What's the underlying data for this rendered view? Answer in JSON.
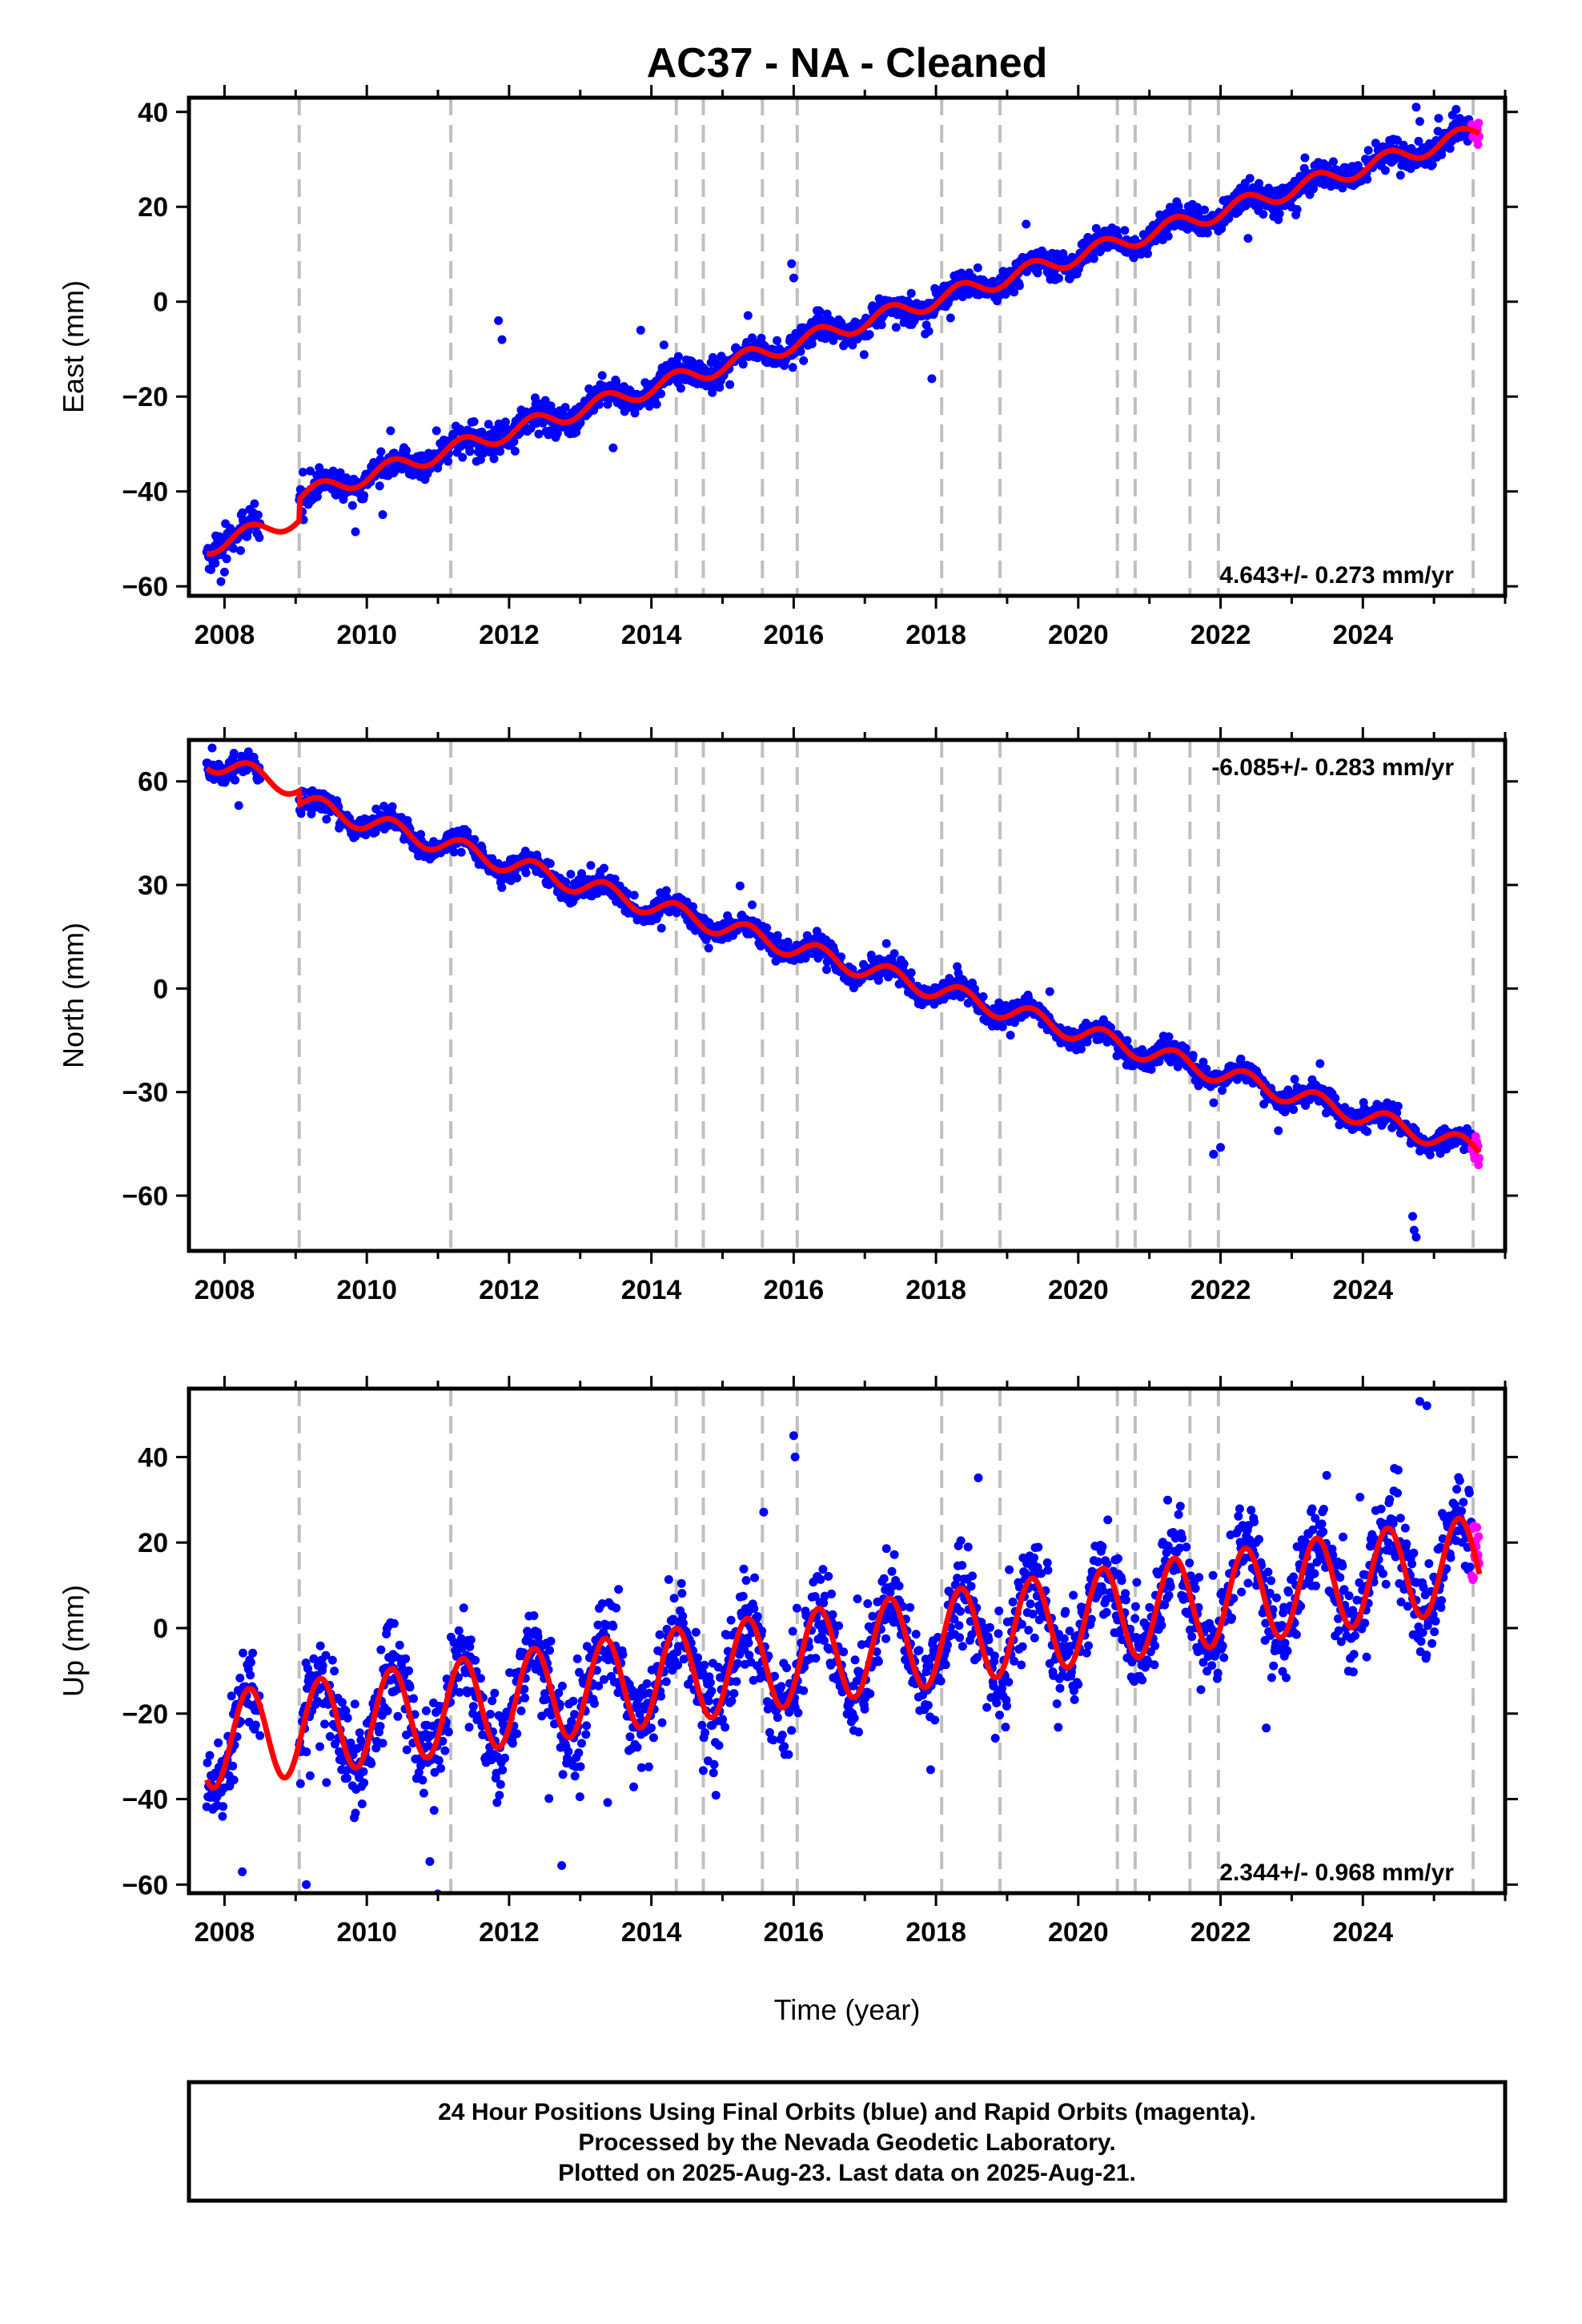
{
  "title": "AC37  - NA - Cleaned",
  "colors": {
    "final_points": "#0000ff",
    "rapid_points": "#ff00ff",
    "model_line": "#ff0000",
    "event_lines": "#c0c0c0",
    "frame": "#000000"
  },
  "footer": {
    "line1": "24 Hour Positions Using Final Orbits (blue) and Rapid Orbits (magenta).",
    "line2": "Processed by the Nevada Geodetic Laboratory.",
    "line3": "Plotted on 2025-Aug-23. Last data on 2025-Aug-21."
  },
  "chart_data": [
    {
      "type": "scatter",
      "panel": "east",
      "ylabel": "East (mm)",
      "xlabel": "",
      "rate_label": "4.643+/- 0.273 mm/yr",
      "rate_position": "bottom-right",
      "xlim": [
        2007.5,
        2026.0
      ],
      "ylim": [
        -62,
        43
      ],
      "x_ticks": [
        2008,
        2010,
        2012,
        2014,
        2016,
        2018,
        2020,
        2022,
        2024
      ],
      "y_ticks": [
        -60,
        -40,
        -20,
        0,
        20,
        40
      ],
      "event_years": [
        2009.05,
        2011.18,
        2014.35,
        2014.73,
        2015.56,
        2016.05,
        2018.08,
        2018.9,
        2020.55,
        2020.8,
        2021.57,
        2021.97,
        2025.55
      ],
      "final_data_range": [
        2007.75,
        2025.53
      ],
      "rapid_data_range": [
        2025.53,
        2025.64
      ],
      "gap": [
        2008.5,
        2009.05
      ],
      "rate": 4.643,
      "intercept_at_2008": -50.5,
      "steps": [
        {
          "year": 2009.05,
          "offset": 4.5
        }
      ],
      "annual_amplitude": 1.8,
      "scatter_sd": 1.5,
      "outliers": [
        {
          "x": 2011.85,
          "y": -4
        },
        {
          "x": 2011.9,
          "y": -8
        },
        {
          "x": 2013.85,
          "y": -6
        },
        {
          "x": 2015.97,
          "y": 8
        },
        {
          "x": 2016.0,
          "y": 5
        },
        {
          "x": 2024.75,
          "y": 41
        },
        {
          "x": 2024.8,
          "y": 38
        },
        {
          "x": 2007.95,
          "y": -59
        },
        {
          "x": 2008.0,
          "y": -57
        }
      ]
    },
    {
      "type": "scatter",
      "panel": "north",
      "ylabel": "North (mm)",
      "xlabel": "",
      "rate_label": "-6.085+/- 0.283 mm/yr",
      "rate_position": "top-right",
      "xlim": [
        2007.5,
        2026.0
      ],
      "ylim": [
        -76,
        72
      ],
      "x_ticks": [
        2008,
        2010,
        2012,
        2014,
        2016,
        2018,
        2020,
        2022,
        2024
      ],
      "y_ticks": [
        -60,
        -30,
        0,
        30,
        60
      ],
      "event_years": [
        2009.05,
        2011.18,
        2014.35,
        2014.73,
        2015.56,
        2016.05,
        2018.08,
        2018.9,
        2020.55,
        2020.8,
        2021.57,
        2021.97,
        2025.55
      ],
      "final_data_range": [
        2007.75,
        2025.53
      ],
      "rapid_data_range": [
        2025.53,
        2025.64
      ],
      "gap": [
        2008.5,
        2009.05
      ],
      "rate": -6.085,
      "intercept_at_2008": 64.5,
      "steps": [
        {
          "year": 2009.05,
          "offset": -4.0
        }
      ],
      "annual_amplitude": 2.8,
      "scatter_sd": 1.6,
      "outliers": [
        {
          "x": 2024.7,
          "y": -66
        },
        {
          "x": 2024.72,
          "y": -70
        },
        {
          "x": 2024.75,
          "y": -72
        },
        {
          "x": 2021.9,
          "y": -48
        },
        {
          "x": 2022.0,
          "y": -46
        },
        {
          "x": 2008.2,
          "y": 53
        }
      ]
    },
    {
      "type": "scatter",
      "panel": "up",
      "ylabel": "Up (mm)",
      "xlabel": "Time (year)",
      "rate_label": "2.344+/- 0.968 mm/yr",
      "rate_position": "bottom-right",
      "xlim": [
        2007.5,
        2026.0
      ],
      "ylim": [
        -62,
        56
      ],
      "x_ticks": [
        2008,
        2010,
        2012,
        2014,
        2016,
        2018,
        2020,
        2022,
        2024
      ],
      "y_ticks": [
        -60,
        -40,
        -20,
        0,
        20,
        40
      ],
      "event_years": [
        2009.05,
        2011.18,
        2014.35,
        2014.73,
        2015.56,
        2016.05,
        2018.08,
        2018.9,
        2020.55,
        2020.8,
        2021.57,
        2021.97,
        2025.55
      ],
      "final_data_range": [
        2007.75,
        2025.53
      ],
      "rapid_data_range": [
        2025.53,
        2025.64
      ],
      "gap": [
        2008.5,
        2009.05
      ],
      "rate": 2.344,
      "intercept_at_2008": -26.0,
      "steps": [],
      "annual_amplitude": 11.0,
      "scatter_sd": 5.5,
      "outliers": [
        {
          "x": 2016.0,
          "y": 45
        },
        {
          "x": 2016.02,
          "y": 40
        },
        {
          "x": 2008.25,
          "y": -57
        },
        {
          "x": 2009.15,
          "y": -60
        },
        {
          "x": 2024.8,
          "y": 53
        },
        {
          "x": 2024.9,
          "y": 52
        }
      ]
    }
  ]
}
